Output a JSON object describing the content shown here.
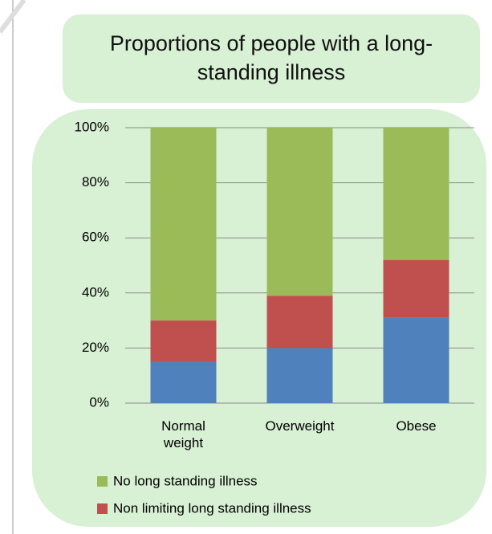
{
  "chart_data": {
    "type": "stacked_bar",
    "title": "Proportions of people with a long-standing illness",
    "categories": [
      "Normal weight",
      "Overweight",
      "Obese"
    ],
    "series": [
      {
        "color": "#4f81bd",
        "values": [
          15,
          20,
          31
        ]
      },
      {
        "name": "Non limiting long standing illness",
        "color": "#c0504d",
        "values": [
          15,
          19,
          21
        ]
      },
      {
        "name": "No long standing illness",
        "color": "#9bbb59",
        "values": [
          70,
          61,
          48
        ]
      }
    ],
    "ylim": [
      0,
      100
    ],
    "yticks": [
      {
        "value": 0,
        "label": "0%"
      },
      {
        "value": 20,
        "label": "20%"
      },
      {
        "value": 40,
        "label": "40%"
      },
      {
        "value": 60,
        "label": "60%"
      },
      {
        "value": 80,
        "label": "80%"
      },
      {
        "value": 100,
        "label": "100%"
      }
    ],
    "grid": true
  }
}
